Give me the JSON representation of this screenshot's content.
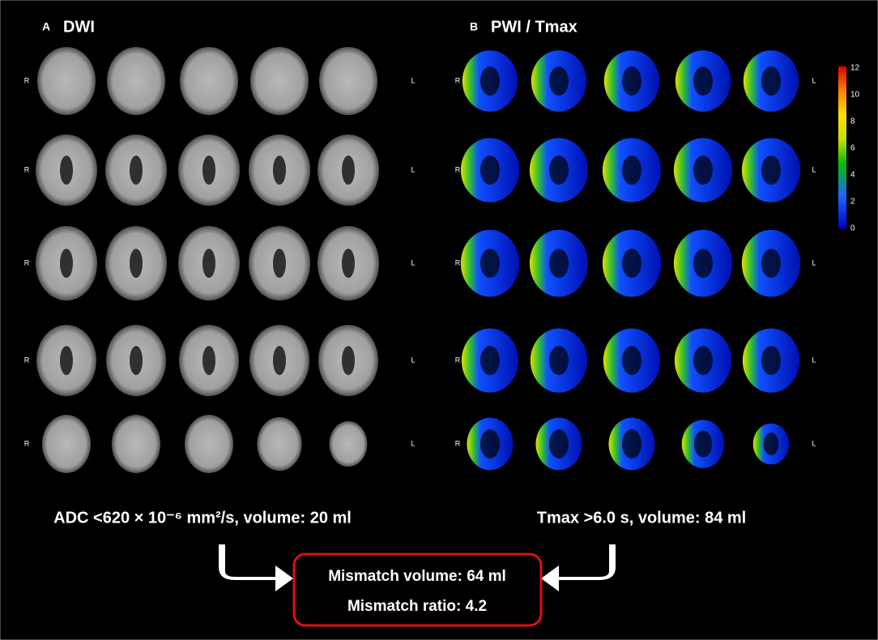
{
  "panels": [
    {
      "letter": "A",
      "title": "DWI",
      "row_labels": [
        [
          "R",
          "L"
        ],
        [
          "R",
          "L"
        ],
        [
          "R",
          "L"
        ],
        [
          "R",
          "L"
        ],
        [
          "R",
          "L"
        ]
      ],
      "caption": "ADC <620 × 10⁻⁶ mm²/s, volume: 20 ml"
    },
    {
      "letter": "B",
      "title": "PWI / Tmax",
      "row_labels": [
        [
          "R",
          "L"
        ],
        [
          "R",
          "L"
        ],
        [
          "R",
          "L"
        ],
        [
          "R",
          "L"
        ],
        [
          "R",
          "L"
        ]
      ],
      "caption": "Tmax >6.0 s, volume: 84 ml"
    }
  ],
  "colorbar": {
    "ticks": [
      12,
      10,
      8,
      6,
      4,
      2,
      0
    ]
  },
  "mismatch": {
    "volume": "Mismatch volume: 64 ml",
    "ratio": "Mismatch ratio: 4.2"
  }
}
